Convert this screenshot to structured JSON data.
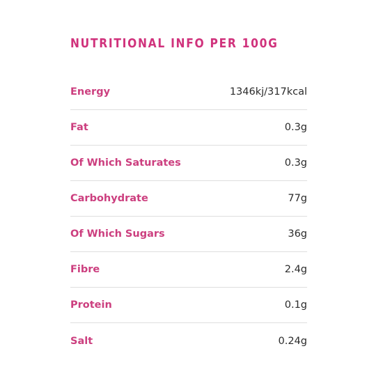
{
  "colors": {
    "accent": "#d0327c",
    "label": "#cc3f7f",
    "value": "#2b2b2b",
    "divider": "#dedede"
  },
  "nutrition": {
    "title": "NUTRITIONAL INFO PER 100G",
    "rows": [
      {
        "label": "Energy",
        "value": "1346kj/317kcal"
      },
      {
        "label": "Fat",
        "value": "0.3g"
      },
      {
        "label": "Of Which Saturates",
        "value": "0.3g"
      },
      {
        "label": "Carbohydrate",
        "value": "77g"
      },
      {
        "label": "Of Which Sugars",
        "value": "36g"
      },
      {
        "label": "Fibre",
        "value": "2.4g"
      },
      {
        "label": "Protein",
        "value": "0.1g"
      },
      {
        "label": "Salt",
        "value": "0.24g"
      }
    ]
  }
}
